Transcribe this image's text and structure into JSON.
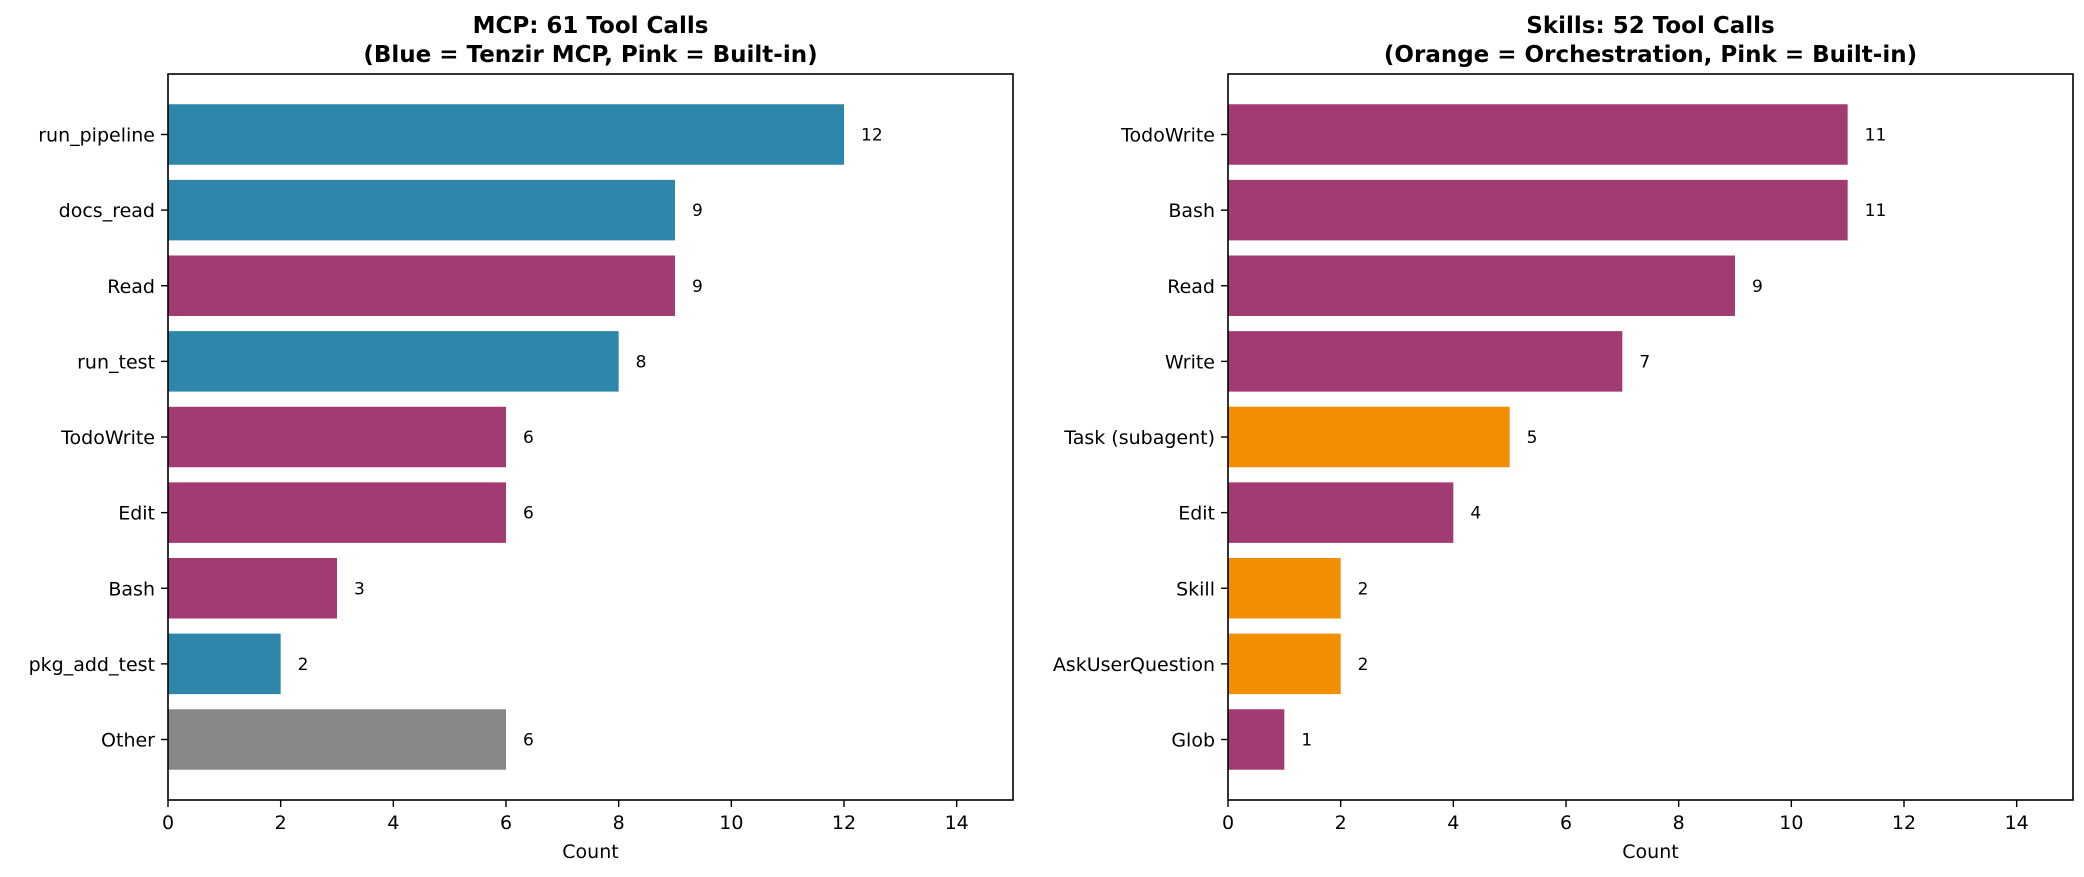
{
  "colors": {
    "tenzir_mcp": "#2e86ab",
    "built_in": "#a23b72",
    "orchestration": "#f18f01",
    "other": "#888888"
  },
  "chart_data": [
    {
      "type": "bar",
      "orientation": "horizontal",
      "title_line1": "MCP: 61 Tool Calls",
      "title_line2": "(Blue = Tenzir MCP, Pink = Built-in)",
      "xlabel": "Count",
      "ylabel": "",
      "xlim": [
        0,
        15
      ],
      "xticks": [
        0,
        2,
        4,
        6,
        8,
        10,
        12,
        14
      ],
      "grid": false,
      "categories": [
        "run_pipeline",
        "docs_read",
        "Read",
        "run_test",
        "TodoWrite",
        "Edit",
        "Bash",
        "pkg_add_test",
        "Other"
      ],
      "values": [
        12,
        9,
        9,
        8,
        6,
        6,
        3,
        2,
        6
      ],
      "groups": [
        "tenzir_mcp",
        "tenzir_mcp",
        "built_in",
        "tenzir_mcp",
        "built_in",
        "built_in",
        "built_in",
        "tenzir_mcp",
        "other"
      ]
    },
    {
      "type": "bar",
      "orientation": "horizontal",
      "title_line1": "Skills: 52 Tool Calls",
      "title_line2": "(Orange = Orchestration, Pink = Built-in)",
      "xlabel": "Count",
      "ylabel": "",
      "xlim": [
        0,
        15
      ],
      "xticks": [
        0,
        2,
        4,
        6,
        8,
        10,
        12,
        14
      ],
      "grid": false,
      "categories": [
        "TodoWrite",
        "Bash",
        "Read",
        "Write",
        "Task (subagent)",
        "Edit",
        "Skill",
        "AskUserQuestion",
        "Glob"
      ],
      "values": [
        11,
        11,
        9,
        7,
        5,
        4,
        2,
        2,
        1
      ],
      "groups": [
        "built_in",
        "built_in",
        "built_in",
        "built_in",
        "orchestration",
        "built_in",
        "orchestration",
        "orchestration",
        "built_in"
      ]
    }
  ]
}
